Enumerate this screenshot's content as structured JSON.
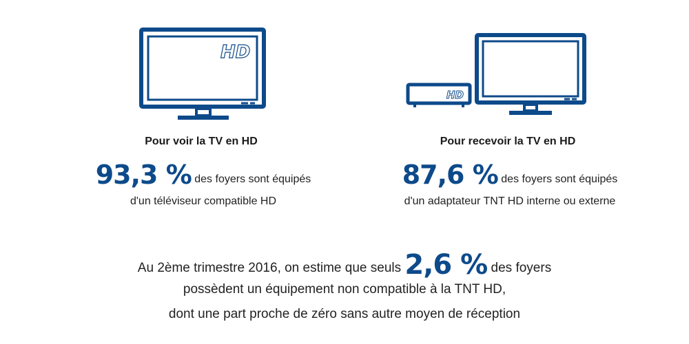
{
  "left": {
    "tv_badge": "HD",
    "title": "Pour voir la TV en HD",
    "percent": "93,3 %",
    "line1": "des foyers sont équipés",
    "line2": "d'un téléviseur compatible HD"
  },
  "right": {
    "box_badge": "HD",
    "title": "Pour recevoir la TV en HD",
    "percent": "87,6 %",
    "line1": "des foyers sont équipés",
    "line2": "d'un adaptateur TNT HD interne ou externe"
  },
  "summary": {
    "line1_before": "Au 2ème trimestre 2016, on estime que seuls",
    "percent": "2,6 %",
    "line1_after": "des foyers",
    "line2": "possèdent un équipement non compatible à la TNT HD,",
    "line3": "dont une part proche de zéro sans autre moyen de réception"
  },
  "colors": {
    "accent": "#0d4a8a"
  }
}
